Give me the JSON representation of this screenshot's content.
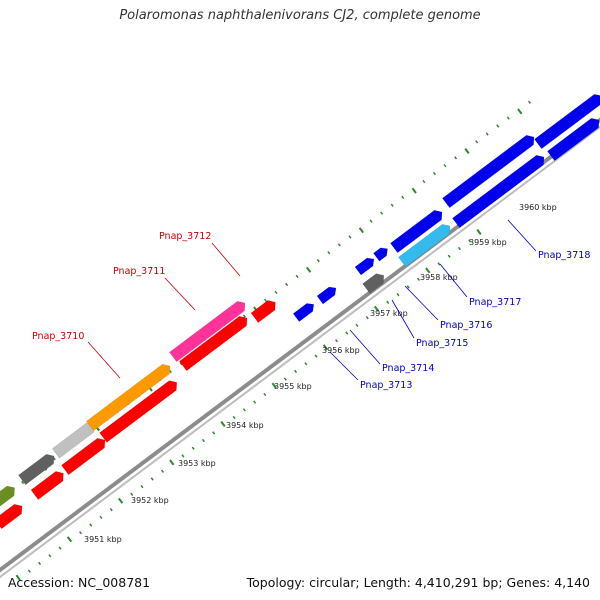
{
  "title": "Polaromonas naphthalenivorans CJ2, complete genome",
  "footer": {
    "accession": "Accession: NC_008781",
    "topology": "Topology: circular; Length: 4,410,291 bp; Genes: 4,140"
  },
  "colors": {
    "backbone": "#8c8c8c",
    "outer_ticks": "#2a8a2a",
    "inner_ticks": "#2a8a2a",
    "label_red": "#cc0000",
    "label_blue": "#0000cc",
    "forward_gene": "#ff0000",
    "reverse_gene": "#0000ee"
  },
  "kbp_markers": [
    "3951 kbp",
    "3952 kbp",
    "3953 kbp",
    "3954 kbp",
    "3955 kbp",
    "3956 kbp",
    "3957 kbp",
    "3958 kbp",
    "3959 kbp",
    "3960 kbp"
  ],
  "gene_labels": [
    {
      "text": "Pnap_3710",
      "color": "#cc0000"
    },
    {
      "text": "Pnap_3711",
      "color": "#cc0000"
    },
    {
      "text": "Pnap_3712",
      "color": "#cc0000"
    },
    {
      "text": "Pnap_3713",
      "color": "#0000cc"
    },
    {
      "text": "Pnap_3714",
      "color": "#0000cc"
    },
    {
      "text": "Pnap_3715",
      "color": "#0000cc"
    },
    {
      "text": "Pnap_3716",
      "color": "#0000cc"
    },
    {
      "text": "Pnap_3717",
      "color": "#0000cc"
    },
    {
      "text": "Pnap_3718",
      "color": "#0000cc"
    }
  ],
  "feature_colors": {
    "olive": "#6b8e23",
    "dark_gray": "#606060",
    "light_gray": "#c0c0c0",
    "orange": "#ff9900",
    "pink": "#ff3399",
    "red": "#ff0000",
    "blue": "#0000ee",
    "cyan": "#33bbee"
  }
}
